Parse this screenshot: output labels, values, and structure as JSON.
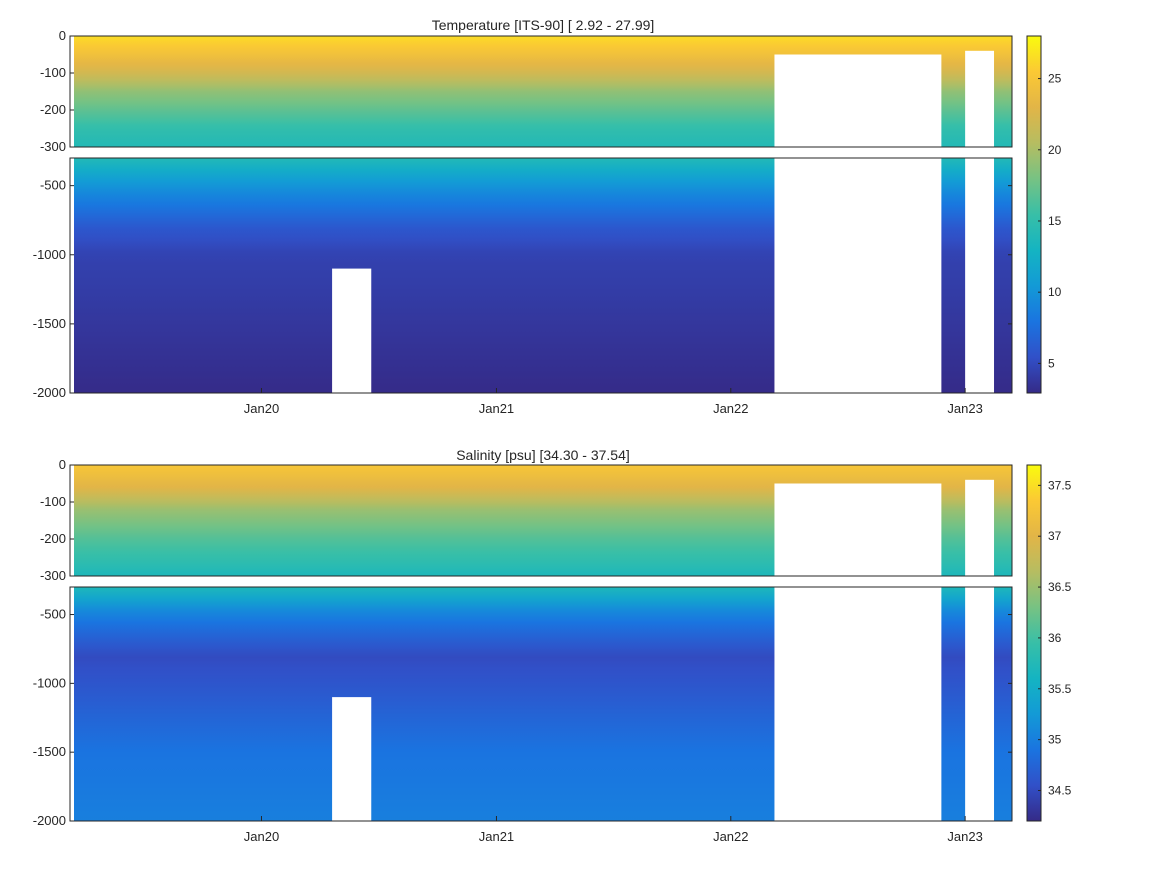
{
  "chart_data": [
    {
      "type": "heatmap",
      "title": "Temperature [ITS-90]   [ 2.92 - 27.99]",
      "variable_range": [
        2.92,
        27.99
      ],
      "x_ticks": [
        "Jan20",
        "Jan21",
        "Jan22",
        "Jan23"
      ],
      "x_tick_dates": [
        "2020-01-01",
        "2021-01-01",
        "2022-01-01",
        "2023-01-01"
      ],
      "xlim": [
        "2019-03-15",
        "2023-03-15"
      ],
      "upper_panel": {
        "ylim": [
          -300,
          0
        ],
        "y_ticks": [
          "0",
          "-100",
          "-200",
          "-300"
        ],
        "y_tick_values": [
          0,
          -100,
          -200,
          -300
        ]
      },
      "lower_panel": {
        "ylim": [
          -2000,
          -300
        ],
        "y_ticks": [
          "-500",
          "-1000",
          "-1500",
          "-2000"
        ],
        "y_tick_values": [
          -500,
          -1000,
          -1500,
          -2000
        ]
      },
      "colorbar": {
        "range": [
          2.92,
          27.99
        ],
        "ticks": [
          "25",
          "20",
          "15",
          "10",
          "5"
        ],
        "tick_values": [
          25,
          20,
          15,
          10,
          5
        ]
      },
      "colormap": [
        "#352a87",
        "#3150c8",
        "#1a74e0",
        "#139ad6",
        "#14b4c2",
        "#38bfa7",
        "#77c283",
        "#b6bd61",
        "#e2b547",
        "#fbc934",
        "#f9fb0e"
      ],
      "depth_profile": [
        {
          "depth": 0,
          "value": 26.5
        },
        {
          "depth": -50,
          "value": 24.5
        },
        {
          "depth": -100,
          "value": 22
        },
        {
          "depth": -150,
          "value": 19
        },
        {
          "depth": -200,
          "value": 17
        },
        {
          "depth": -250,
          "value": 15
        },
        {
          "depth": -300,
          "value": 14
        },
        {
          "depth": -500,
          "value": 10
        },
        {
          "depth": -800,
          "value": 6
        },
        {
          "depth": -1000,
          "value": 4.5
        },
        {
          "depth": -2000,
          "value": 3
        }
      ],
      "data_gaps": [
        {
          "start": "2022-03-10",
          "end": "2022-11-25",
          "depth_from": -300,
          "depth_to": -2000
        },
        {
          "start": "2022-03-10",
          "end": "2022-11-25",
          "depth_from": -50,
          "depth_to": -300
        },
        {
          "start": "2023-01-01",
          "end": "2023-02-15",
          "depth_from": -40,
          "depth_to": -2000
        },
        {
          "start": "2020-04-20",
          "end": "2020-06-20",
          "depth_from": -1100,
          "depth_to": -2000
        }
      ]
    },
    {
      "type": "heatmap",
      "title": "Salinity [psu]   [34.30 - 37.54]",
      "variable_range": [
        34.3,
        37.54
      ],
      "x_ticks": [
        "Jan20",
        "Jan21",
        "Jan22",
        "Jan23"
      ],
      "x_tick_dates": [
        "2020-01-01",
        "2021-01-01",
        "2022-01-01",
        "2023-01-01"
      ],
      "xlim": [
        "2019-03-15",
        "2023-03-15"
      ],
      "upper_panel": {
        "ylim": [
          -300,
          0
        ],
        "y_ticks": [
          "0",
          "-100",
          "-200",
          "-300"
        ],
        "y_tick_values": [
          0,
          -100,
          -200,
          -300
        ]
      },
      "lower_panel": {
        "ylim": [
          -2000,
          -300
        ],
        "y_ticks": [
          "-500",
          "-1000",
          "-1500",
          "-2000"
        ],
        "y_tick_values": [
          -500,
          -1000,
          -1500,
          -2000
        ]
      },
      "colorbar": {
        "range": [
          34.2,
          37.7
        ],
        "ticks": [
          "37.5",
          "37",
          "36.5",
          "36",
          "35.5",
          "35",
          "34.5"
        ],
        "tick_values": [
          37.5,
          37,
          36.5,
          36,
          35.5,
          35,
          34.5
        ]
      },
      "colormap": [
        "#352a87",
        "#3150c8",
        "#1a74e0",
        "#139ad6",
        "#14b4c2",
        "#38bfa7",
        "#77c283",
        "#b6bd61",
        "#e2b547",
        "#fbc934",
        "#f9fb0e"
      ],
      "depth_profile": [
        {
          "depth": 0,
          "value": 37.3
        },
        {
          "depth": -60,
          "value": 37.0
        },
        {
          "depth": -120,
          "value": 36.5
        },
        {
          "depth": -200,
          "value": 36.1
        },
        {
          "depth": -300,
          "value": 35.7
        },
        {
          "depth": -500,
          "value": 35.0
        },
        {
          "depth": -800,
          "value": 34.5
        },
        {
          "depth": -1000,
          "value": 34.6
        },
        {
          "depth": -1500,
          "value": 34.9
        },
        {
          "depth": -2000,
          "value": 35.0
        }
      ],
      "data_gaps": [
        {
          "start": "2022-03-10",
          "end": "2022-11-25",
          "depth_from": -300,
          "depth_to": -2000
        },
        {
          "start": "2022-03-10",
          "end": "2022-11-25",
          "depth_from": -50,
          "depth_to": -300
        },
        {
          "start": "2023-01-01",
          "end": "2023-02-15",
          "depth_from": -40,
          "depth_to": -2000
        },
        {
          "start": "2020-04-20",
          "end": "2020-06-20",
          "depth_from": -1100,
          "depth_to": -2000
        }
      ]
    }
  ]
}
